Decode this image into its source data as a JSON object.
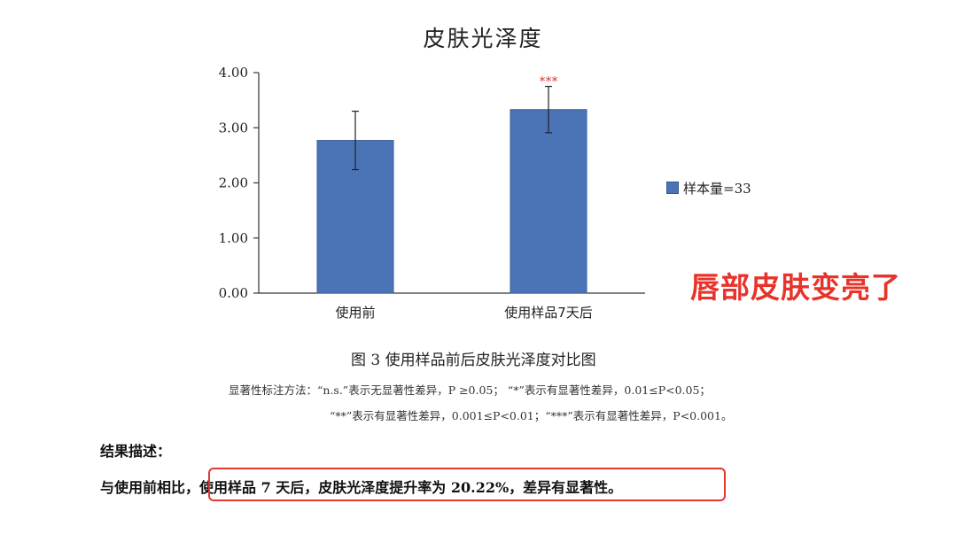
{
  "chart_data": {
    "type": "bar",
    "title": "皮肤光泽度",
    "categories": [
      "使用前",
      "使用样品7天后"
    ],
    "series": [
      {
        "name": "样本量=33",
        "values": [
          2.77,
          3.33
        ],
        "error": [
          0.53,
          0.42
        ],
        "color": "#4a74b6"
      }
    ],
    "significance": [
      "",
      "***"
    ],
    "ylim": [
      0,
      4
    ],
    "yticks": [
      "0.00",
      "1.00",
      "2.00",
      "3.00",
      "4.00"
    ],
    "xlabel": "",
    "ylabel": "",
    "grid": false,
    "legend_position": "right"
  },
  "annotation": "唇部皮肤变亮了",
  "caption": "图 3  使用样品前后皮肤光泽度对比图",
  "notes": {
    "line1": "显著性标注方法：“n.s.”表示无显著性差异，P ≥0.05；  “*”表示有显著性差异，0.01≤P<0.05；",
    "line2": "“**”表示有显著性差异，0.001≤P<0.01；“***”表示有显著性差异，P<0.001。"
  },
  "result": {
    "heading": "结果描述：",
    "prefix": "与使用前相比，",
    "highlighted": "使用样品 7 天后，皮肤光泽度提升率为 20.22%，差异有显著性。"
  },
  "colors": {
    "bar": "#4a74b6",
    "significance": "#d9342b",
    "annotation": "#e8332a",
    "highlight_border": "#e0392f"
  }
}
